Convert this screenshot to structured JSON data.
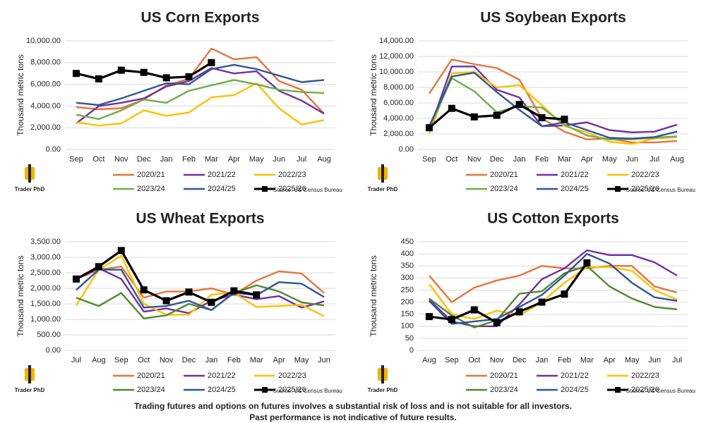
{
  "chart_data": [
    {
      "type": "line",
      "title": "US Corn Exports",
      "ylabel": "Thousand metric tons",
      "source": "Source: US Census Bureau",
      "logo_text": "Trader PhD",
      "categories": [
        "Sep",
        "Oct",
        "Nov",
        "Dec",
        "Jan",
        "Feb",
        "Mar",
        "Apr",
        "May",
        "Jun",
        "Jul",
        "Aug"
      ],
      "ylim": [
        0,
        10000
      ],
      "grid": true,
      "yticks": [
        {
          "value": 0,
          "label": "0.00"
        },
        {
          "value": 2000,
          "label": "2,000.00"
        },
        {
          "value": 4000,
          "label": "4,000.00"
        },
        {
          "value": 6000,
          "label": "6,000.00"
        },
        {
          "value": 8000,
          "label": "8,000.00"
        },
        {
          "value": 10000,
          "label": "10,000.00"
        }
      ],
      "series": [
        {
          "name": "2020/21",
          "color": "#e8733a",
          "values": [
            3900,
            3700,
            3800,
            4600,
            5900,
            6500,
            9300,
            8300,
            8500,
            6300,
            5500,
            3300
          ]
        },
        {
          "name": "2021/22",
          "color": "#7030a0",
          "values": [
            2400,
            4000,
            4300,
            4700,
            5800,
            6300,
            7500,
            7000,
            7200,
            5400,
            4500,
            3300
          ]
        },
        {
          "name": "2022/23",
          "color": "#ffc000",
          "values": [
            2500,
            2200,
            2400,
            3600,
            3100,
            3400,
            4800,
            5000,
            6100,
            3800,
            2300,
            2700
          ]
        },
        {
          "name": "2023/24",
          "color": "#70ad47",
          "values": [
            3200,
            2800,
            3600,
            4600,
            4300,
            5400,
            5900,
            6400,
            6000,
            5500,
            5300,
            5200
          ]
        },
        {
          "name": "2024/25",
          "color": "#2f5597",
          "values": [
            4300,
            4100,
            4700,
            5400,
            6100,
            6000,
            7400,
            7800,
            7400,
            6800,
            6200,
            6400
          ]
        },
        {
          "name": "2025/26",
          "color": "#000000",
          "marker": "square",
          "values": [
            7000,
            6500,
            7300,
            7100,
            6600,
            6700,
            8000,
            null,
            null,
            null,
            null,
            null
          ]
        }
      ]
    },
    {
      "type": "line",
      "title": "US Soybean Exports",
      "ylabel": "Thousand metric tons",
      "source": "Source: US Census Bureau",
      "logo_text": "Trader PhD",
      "categories": [
        "Sep",
        "Oct",
        "Nov",
        "Dec",
        "Jan",
        "Feb",
        "Mar",
        "Apr",
        "May",
        "Jun",
        "Jul",
        "Aug"
      ],
      "ylim": [
        0,
        14000
      ],
      "grid": true,
      "yticks": [
        {
          "value": 0,
          "label": "0.00"
        },
        {
          "value": 2000,
          "label": "2,000.00"
        },
        {
          "value": 4000,
          "label": "4,000.00"
        },
        {
          "value": 6000,
          "label": "6,000.00"
        },
        {
          "value": 8000,
          "label": "8,000.00"
        },
        {
          "value": 10000,
          "label": "10,000.00"
        },
        {
          "value": 12000,
          "label": "12,000.00"
        },
        {
          "value": 14000,
          "label": "14,000.00"
        }
      ],
      "series": [
        {
          "name": "2020/21",
          "color": "#e8733a",
          "values": [
            7200,
            11600,
            11000,
            10500,
            9000,
            4000,
            2300,
            1300,
            1400,
            900,
            900,
            1100
          ]
        },
        {
          "name": "2021/22",
          "color": "#7030a0",
          "values": [
            2400,
            10700,
            10700,
            7700,
            6700,
            3000,
            3100,
            3500,
            2500,
            2200,
            2300,
            3200
          ]
        },
        {
          "name": "2022/23",
          "color": "#ffc000",
          "values": [
            2000,
            9800,
            10000,
            8000,
            8300,
            5700,
            3000,
            2200,
            1000,
            700,
            1400,
            1600
          ]
        },
        {
          "name": "2023/24",
          "color": "#70ad47",
          "values": [
            2700,
            9200,
            7500,
            4800,
            5600,
            5400,
            3200,
            1800,
            1300,
            1300,
            1500,
            1700
          ]
        },
        {
          "name": "2024/25",
          "color": "#2f5597",
          "values": [
            3000,
            9400,
            9900,
            7400,
            5100,
            3000,
            3500,
            2500,
            1500,
            1400,
            1600,
            2300
          ]
        },
        {
          "name": "2025/26",
          "color": "#000000",
          "marker": "square",
          "values": [
            2800,
            5300,
            4200,
            4400,
            5800,
            4100,
            3900,
            null,
            null,
            null,
            null,
            null
          ]
        }
      ]
    },
    {
      "type": "line",
      "title": "US Wheat Exports",
      "ylabel": "Thousand metric tons",
      "source": "Source: US Census Bureau",
      "logo_text": "Trader PhD",
      "categories": [
        "Jul",
        "Aug",
        "Sep",
        "Oct",
        "Nov",
        "Dec",
        "Jan",
        "Feb",
        "Mar",
        "Apr",
        "May",
        "Jun"
      ],
      "ylim": [
        0,
        3500
      ],
      "grid": true,
      "yticks": [
        {
          "value": 0,
          "label": "0.00"
        },
        {
          "value": 500,
          "label": "500.00"
        },
        {
          "value": 1000,
          "label": "1,000.00"
        },
        {
          "value": 1500,
          "label": "1,500.00"
        },
        {
          "value": 2000,
          "label": "2,000.00"
        },
        {
          "value": 2500,
          "label": "2,500.00"
        },
        {
          "value": 3000,
          "label": "3,000.00"
        },
        {
          "value": 3500,
          "label": "3,500.00"
        }
      ],
      "series": [
        {
          "name": "2020/21",
          "color": "#e8733a",
          "values": [
            2300,
            2600,
            2700,
            1700,
            1900,
            1900,
            2000,
            1800,
            2250,
            2550,
            2480,
            1850
          ]
        },
        {
          "name": "2021/22",
          "color": "#7030a0",
          "values": [
            2300,
            2650,
            2300,
            1250,
            1350,
            1200,
            1600,
            1800,
            1650,
            1750,
            1380,
            1580
          ]
        },
        {
          "name": "2022/23",
          "color": "#ffc000",
          "values": [
            1450,
            2600,
            3050,
            1500,
            1150,
            1150,
            1800,
            1850,
            1400,
            1430,
            1470,
            1100
          ]
        },
        {
          "name": "2023/24",
          "color": "#4e8a2e",
          "values": [
            1700,
            1430,
            1850,
            1030,
            1130,
            1500,
            1300,
            1850,
            2100,
            1900,
            1550,
            1450
          ]
        },
        {
          "name": "2024/25",
          "color": "#2f5597",
          "values": [
            1950,
            2600,
            2600,
            1380,
            1430,
            1600,
            1300,
            1860,
            1780,
            2200,
            2150,
            1720
          ]
        },
        {
          "name": "2025/26",
          "color": "#000000",
          "marker": "square",
          "values": [
            2300,
            2700,
            3220,
            1950,
            1600,
            1880,
            1550,
            1920,
            1790,
            null,
            null,
            null
          ]
        }
      ]
    },
    {
      "type": "line",
      "title": "US Cotton Exports",
      "ylabel": "Thousand metric tons",
      "source": "Source: US Census Bureau",
      "logo_text": "Trader PhD",
      "categories": [
        "Aug",
        "Sep",
        "Oct",
        "Nov",
        "Dec",
        "Jan",
        "Feb",
        "Mar",
        "Apr",
        "May",
        "Jun",
        "Jul"
      ],
      "ylim": [
        0,
        450
      ],
      "grid": true,
      "yticks": [
        0,
        50,
        100,
        150,
        200,
        250,
        300,
        350,
        400,
        450
      ],
      "series": [
        {
          "name": "2020/21",
          "color": "#e8733a",
          "values": [
            310,
            200,
            260,
            290,
            310,
            350,
            340,
            340,
            350,
            350,
            265,
            240
          ]
        },
        {
          "name": "2021/22",
          "color": "#7030a0",
          "values": [
            210,
            120,
            100,
            100,
            190,
            295,
            340,
            415,
            395,
            395,
            365,
            310
          ]
        },
        {
          "name": "2022/23",
          "color": "#ffc000",
          "values": [
            275,
            150,
            130,
            165,
            145,
            200,
            280,
            345,
            345,
            330,
            250,
            210
          ]
        },
        {
          "name": "2023/24",
          "color": "#4e8a2e",
          "values": [
            215,
            145,
            95,
            125,
            235,
            245,
            320,
            350,
            265,
            215,
            180,
            170
          ]
        },
        {
          "name": "2024/25",
          "color": "#2f5597",
          "values": [
            205,
            110,
            120,
            130,
            180,
            230,
            310,
            400,
            360,
            280,
            220,
            205
          ]
        },
        {
          "name": "2025/26",
          "color": "#000000",
          "marker": "square",
          "values": [
            140,
            128,
            168,
            115,
            160,
            200,
            233,
            363,
            null,
            null,
            null,
            null
          ]
        }
      ]
    }
  ],
  "disclaimer": [
    "Trading futures and options on futures involves a substantial risk of loss and is not suitable for all investors.",
    "Past performance is not indicative of future results."
  ]
}
